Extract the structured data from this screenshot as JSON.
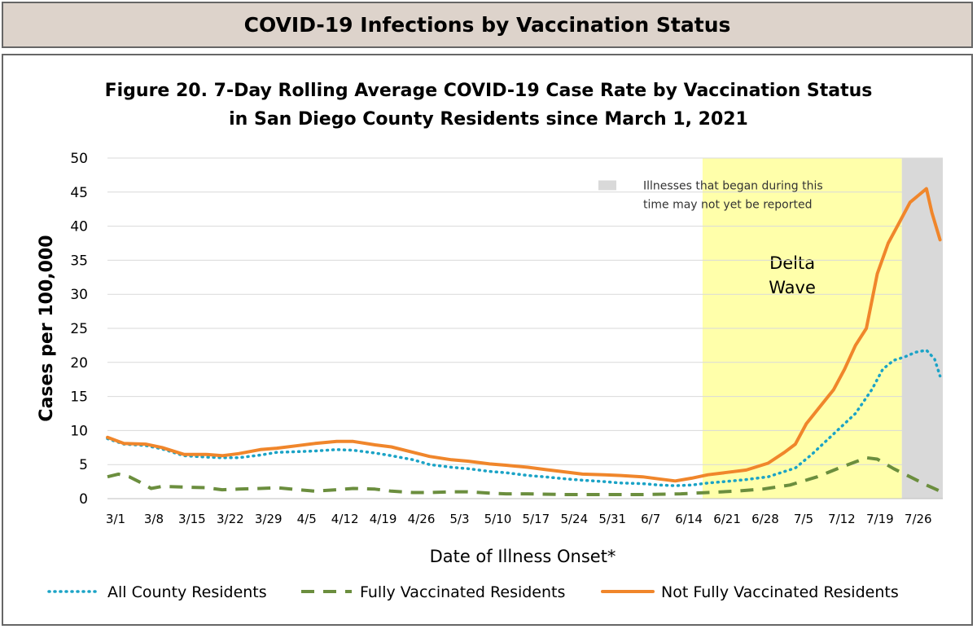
{
  "banner": {
    "title": "COVID-19 Infections by Vaccination Status"
  },
  "chart_data": {
    "type": "line",
    "title": "Figure 20. 7-Day Rolling Average COVID-19 Case Rate by Vaccination Status",
    "subtitle": "in San Diego County Residents since March 1, 2021",
    "xlabel": "Date of Illness Onset*",
    "ylabel": "Cases per 100,000",
    "ylim": [
      0,
      50
    ],
    "yticks": [
      0,
      5,
      10,
      15,
      20,
      25,
      30,
      35,
      40,
      45,
      50
    ],
    "x_ticks": [
      {
        "day": 0,
        "label": "3/1"
      },
      {
        "day": 7,
        "label": "3/8"
      },
      {
        "day": 14,
        "label": "3/15"
      },
      {
        "day": 21,
        "label": "3/22"
      },
      {
        "day": 28,
        "label": "3/29"
      },
      {
        "day": 35,
        "label": "4/5"
      },
      {
        "day": 42,
        "label": "4/12"
      },
      {
        "day": 49,
        "label": "4/19"
      },
      {
        "day": 56,
        "label": "4/26"
      },
      {
        "day": 63,
        "label": "5/3"
      },
      {
        "day": 70,
        "label": "5/10"
      },
      {
        "day": 77,
        "label": "5/17"
      },
      {
        "day": 84,
        "label": "5/24"
      },
      {
        "day": 91,
        "label": "5/31"
      },
      {
        "day": 98,
        "label": "6/7"
      },
      {
        "day": 105,
        "label": "6/14"
      },
      {
        "day": 112,
        "label": "6/21"
      },
      {
        "day": 119,
        "label": "6/28"
      },
      {
        "day": 126,
        "label": "7/5"
      },
      {
        "day": 133,
        "label": "7/12"
      },
      {
        "day": 140,
        "label": "7/19"
      },
      {
        "day": 147,
        "label": "7/26"
      }
    ],
    "x_range_days": [
      0,
      153
    ],
    "grid": "horizontal",
    "legend_position": "bottom",
    "regions": [
      {
        "name": "delta",
        "label_lines": [
          "Delta",
          "Wave"
        ],
        "start_day": 109,
        "end_day": 145.5,
        "color": "#ffffaa"
      },
      {
        "name": "incomplete",
        "start_day": 145.5,
        "end_day": 153,
        "color": "#d9d9d9"
      }
    ],
    "annotation": {
      "lines": [
        "Illnesses that began during this",
        "time may not yet be reported"
      ],
      "anchor_day": 117,
      "anchor_y": 43
    },
    "series": [
      {
        "name": "All County Residents",
        "color": "#1ba3c6",
        "style": "dotted",
        "points": [
          [
            0,
            8.8
          ],
          [
            3,
            8.0
          ],
          [
            7,
            7.8
          ],
          [
            10,
            7.3
          ],
          [
            14,
            6.3
          ],
          [
            18,
            6.1
          ],
          [
            21,
            6.0
          ],
          [
            24,
            6.0
          ],
          [
            28,
            6.4
          ],
          [
            31,
            6.8
          ],
          [
            35,
            6.9
          ],
          [
            38,
            7.0
          ],
          [
            42,
            7.2
          ],
          [
            45,
            7.1
          ],
          [
            49,
            6.7
          ],
          [
            52,
            6.3
          ],
          [
            56,
            5.7
          ],
          [
            59,
            5.0
          ],
          [
            63,
            4.6
          ],
          [
            66,
            4.4
          ],
          [
            70,
            4.0
          ],
          [
            73,
            3.8
          ],
          [
            77,
            3.4
          ],
          [
            80,
            3.2
          ],
          [
            84,
            2.9
          ],
          [
            87,
            2.7
          ],
          [
            91,
            2.5
          ],
          [
            94,
            2.3
          ],
          [
            98,
            2.2
          ],
          [
            101,
            2.0
          ],
          [
            104,
            1.9
          ],
          [
            107,
            2.0
          ],
          [
            110,
            2.3
          ],
          [
            113,
            2.5
          ],
          [
            117,
            2.8
          ],
          [
            121,
            3.2
          ],
          [
            126,
            4.5
          ],
          [
            129,
            6.5
          ],
          [
            133,
            9.5
          ],
          [
            137,
            12.5
          ],
          [
            140,
            16.0
          ],
          [
            142,
            19.0
          ],
          [
            144,
            20.3
          ],
          [
            146,
            20.8
          ],
          [
            148,
            21.5
          ],
          [
            150,
            21.8
          ],
          [
            151.5,
            20.5
          ],
          [
            152.5,
            18.0
          ]
        ]
      },
      {
        "name": "Fully Vaccinated Residents",
        "color": "#6b8e3e",
        "style": "dashed",
        "points": [
          [
            0,
            3.2
          ],
          [
            2,
            3.6
          ],
          [
            4,
            3.2
          ],
          [
            6,
            2.4
          ],
          [
            8,
            1.5
          ],
          [
            10,
            1.8
          ],
          [
            14,
            1.7
          ],
          [
            18,
            1.6
          ],
          [
            21,
            1.3
          ],
          [
            24,
            1.4
          ],
          [
            28,
            1.5
          ],
          [
            31,
            1.6
          ],
          [
            35,
            1.3
          ],
          [
            38,
            1.1
          ],
          [
            42,
            1.3
          ],
          [
            45,
            1.5
          ],
          [
            49,
            1.4
          ],
          [
            52,
            1.1
          ],
          [
            56,
            0.9
          ],
          [
            59,
            0.9
          ],
          [
            63,
            1.0
          ],
          [
            66,
            1.0
          ],
          [
            70,
            0.8
          ],
          [
            73,
            0.7
          ],
          [
            77,
            0.7
          ],
          [
            84,
            0.6
          ],
          [
            91,
            0.6
          ],
          [
            98,
            0.6
          ],
          [
            105,
            0.7
          ],
          [
            110,
            0.9
          ],
          [
            115,
            1.1
          ],
          [
            120,
            1.4
          ],
          [
            125,
            2.0
          ],
          [
            130,
            3.2
          ],
          [
            134,
            4.5
          ],
          [
            137,
            5.4
          ],
          [
            139,
            6.0
          ],
          [
            141,
            5.8
          ],
          [
            144,
            4.4
          ],
          [
            147,
            3.2
          ],
          [
            150,
            2.0
          ],
          [
            152.5,
            1.1
          ]
        ]
      },
      {
        "name": "Not Fully Vaccinated Residents",
        "color": "#f0862b",
        "style": "solid",
        "points": [
          [
            0,
            9.0
          ],
          [
            3,
            8.1
          ],
          [
            7,
            8.0
          ],
          [
            10,
            7.5
          ],
          [
            14,
            6.5
          ],
          [
            18,
            6.5
          ],
          [
            21,
            6.3
          ],
          [
            24,
            6.6
          ],
          [
            28,
            7.2
          ],
          [
            31,
            7.4
          ],
          [
            35,
            7.8
          ],
          [
            38,
            8.1
          ],
          [
            42,
            8.4
          ],
          [
            45,
            8.4
          ],
          [
            49,
            7.9
          ],
          [
            52,
            7.6
          ],
          [
            56,
            6.8
          ],
          [
            59,
            6.2
          ],
          [
            63,
            5.7
          ],
          [
            66,
            5.5
          ],
          [
            70,
            5.1
          ],
          [
            73,
            4.9
          ],
          [
            77,
            4.6
          ],
          [
            80,
            4.3
          ],
          [
            84,
            3.9
          ],
          [
            87,
            3.6
          ],
          [
            91,
            3.5
          ],
          [
            94,
            3.4
          ],
          [
            98,
            3.2
          ],
          [
            101,
            2.9
          ],
          [
            104,
            2.6
          ],
          [
            107,
            3.0
          ],
          [
            110,
            3.5
          ],
          [
            113,
            3.8
          ],
          [
            117,
            4.2
          ],
          [
            121,
            5.2
          ],
          [
            124,
            6.8
          ],
          [
            126,
            8.0
          ],
          [
            128,
            11.0
          ],
          [
            130,
            13.0
          ],
          [
            133,
            16.0
          ],
          [
            135,
            19.0
          ],
          [
            137,
            22.5
          ],
          [
            139,
            25.0
          ],
          [
            141,
            33.0
          ],
          [
            143,
            37.5
          ],
          [
            145,
            40.5
          ],
          [
            147,
            43.5
          ],
          [
            148.5,
            44.5
          ],
          [
            150,
            45.5
          ],
          [
            151,
            42.0
          ],
          [
            152.5,
            38.0
          ]
        ]
      }
    ]
  }
}
